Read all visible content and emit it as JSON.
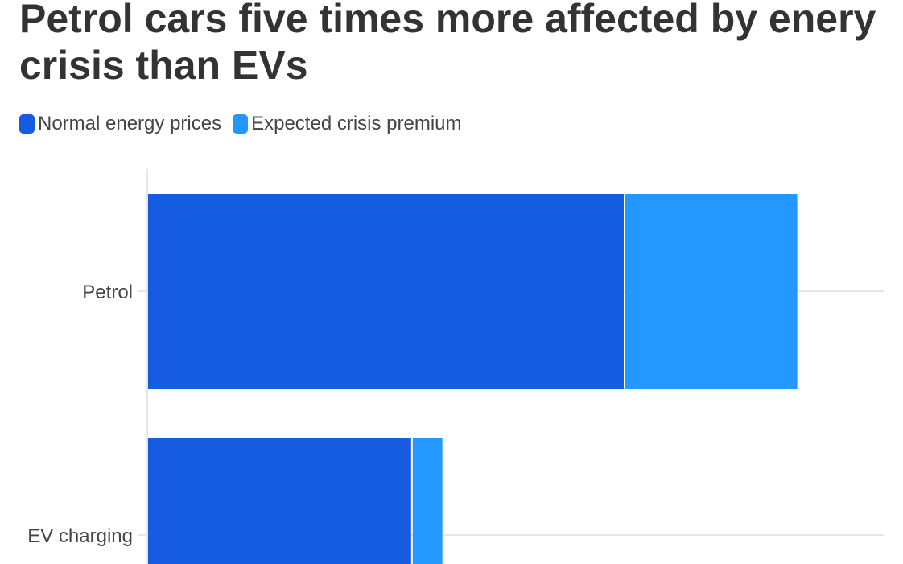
{
  "chart_data": {
    "type": "bar",
    "orientation": "horizontal",
    "stacked": true,
    "title": "Petrol cars five times more affected by enery crisis than EVs",
    "categories": [
      "Petrol",
      "EV charging"
    ],
    "series": [
      {
        "name": "Normal energy prices",
        "values": [
          11.0,
          6.1
        ],
        "color": "#165ce0"
      },
      {
        "name": "Expected crisis premium",
        "values": [
          4.0,
          0.72
        ],
        "color": "#2398ff"
      }
    ],
    "xlim": [
      0,
      17
    ],
    "grid": true,
    "legend_position": "top-left",
    "xlabel": "",
    "ylabel": ""
  }
}
